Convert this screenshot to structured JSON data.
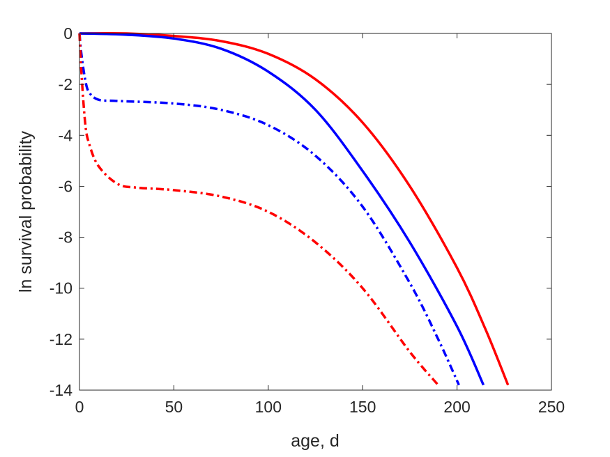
{
  "chart_data": {
    "type": "line",
    "title": "",
    "xlabel": "age, d",
    "ylabel": "ln survival probability",
    "xlim": [
      0,
      250
    ],
    "ylim": [
      -14,
      0
    ],
    "xticks": [
      "0",
      "50",
      "100",
      "150",
      "200",
      "250"
    ],
    "yticks": [
      "0",
      "-2",
      "-4",
      "-6",
      "-8",
      "-10",
      "-12",
      "-14"
    ],
    "grid": false,
    "legend": "none",
    "series": [
      {
        "color": "#ff0000",
        "style": "solid",
        "x": [
          0,
          25,
          50,
          75,
          100,
          125,
          150,
          175,
          200,
          215,
          227
        ],
        "y": [
          0,
          0,
          -0.1,
          -0.3,
          -0.8,
          -1.8,
          -3.5,
          -6.0,
          -9.2,
          -11.6,
          -13.8
        ]
      },
      {
        "color": "#0000ff",
        "style": "solid",
        "x": [
          0,
          25,
          50,
          75,
          100,
          125,
          150,
          175,
          200,
          214
        ],
        "y": [
          0,
          -0.05,
          -0.2,
          -0.6,
          -1.5,
          -3.0,
          -5.4,
          -8.2,
          -11.5,
          -13.8
        ]
      },
      {
        "color": "#0000ff",
        "style": "dashdot",
        "x": [
          0,
          1,
          3,
          5,
          10,
          20,
          50,
          75,
          100,
          125,
          150,
          175,
          190,
          201
        ],
        "y": [
          0,
          -0.8,
          -1.8,
          -2.3,
          -2.6,
          -2.65,
          -2.75,
          -3.0,
          -3.6,
          -4.8,
          -6.8,
          -9.8,
          -12.0,
          -13.8
        ]
      },
      {
        "color": "#ff0000",
        "style": "dashdot",
        "x": [
          0,
          1,
          3,
          5,
          10,
          20,
          30,
          50,
          75,
          100,
          125,
          150,
          175,
          190
        ],
        "y": [
          0,
          -1.5,
          -3.5,
          -4.3,
          -5.2,
          -5.9,
          -6.05,
          -6.15,
          -6.4,
          -7.0,
          -8.2,
          -10.0,
          -12.5,
          -13.8
        ]
      }
    ]
  }
}
